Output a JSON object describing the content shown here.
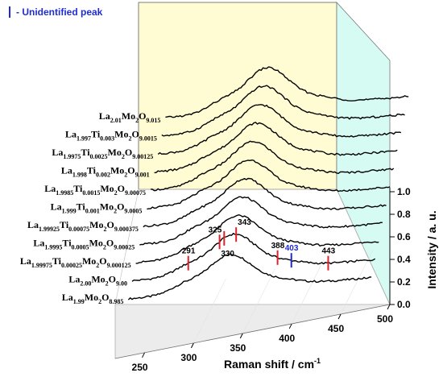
{
  "chart_data": {
    "type": "line",
    "style": "3d-waterfall",
    "xlabel": "Raman shift / cm",
    "xlabel_sup": "-1",
    "ylabel": "Intensity / a. u.",
    "xlim": [
      220,
      500
    ],
    "ylim": [
      0.0,
      1.0
    ],
    "x_ticks": [
      "250",
      "300",
      "350",
      "400",
      "450",
      "500"
    ],
    "y_ticks": [
      "0.0",
      "0.2",
      "0.4",
      "0.6",
      "0.8",
      "1.0"
    ],
    "legend": {
      "text": "- Unidentified peak",
      "color": "#1f2bd6",
      "position": "top-left"
    },
    "peaks": [
      {
        "label": "291",
        "x": 291,
        "color": "#e0202a",
        "unidentified": false
      },
      {
        "label": "325",
        "x": 325,
        "color": "#e0202a",
        "unidentified": false
      },
      {
        "label": "330",
        "x": 330,
        "color": "#e0202a",
        "unidentified": false
      },
      {
        "label": "343",
        "x": 343,
        "color": "#e0202a",
        "unidentified": false
      },
      {
        "label": "388",
        "x": 388,
        "color": "#e0202a",
        "unidentified": false
      },
      {
        "label": "403",
        "x": 403,
        "color": "#1f2bd6",
        "unidentified": true
      },
      {
        "label": "443",
        "x": 443,
        "color": "#e0202a",
        "unidentified": false
      }
    ],
    "series": [
      {
        "parts": [
          "La",
          "1.99",
          "Mo",
          "2",
          "O",
          "8.985"
        ]
      },
      {
        "parts": [
          "La",
          "2.00",
          "Mo",
          "2",
          "O",
          "9.00"
        ]
      },
      {
        "parts": [
          "La",
          "1.99975",
          "Ti",
          "0.00025",
          "Mo",
          "2",
          "O",
          "9.000125"
        ]
      },
      {
        "parts": [
          "La",
          "1.9995",
          "Ti",
          "0.0005",
          "Mo",
          "2",
          "O",
          "9.00025"
        ]
      },
      {
        "parts": [
          "La",
          "1.99925",
          "Ti",
          "0.00075",
          "Mo",
          "2",
          "O",
          "9.000375"
        ]
      },
      {
        "parts": [
          "La",
          "1.999",
          "Ti",
          "0.001",
          "Mo",
          "2",
          "O",
          "9.0005"
        ]
      },
      {
        "parts": [
          "La",
          "1.9985",
          "Ti",
          "0.0015",
          "Mo",
          "2",
          "O",
          "9.00075"
        ]
      },
      {
        "parts": [
          "La",
          "1.998",
          "Ti",
          "0.002",
          "Mo",
          "2",
          "O",
          "9.001"
        ]
      },
      {
        "parts": [
          "La",
          "1.9975",
          "Ti",
          "0.0025",
          "Mo",
          "2",
          "O",
          "9.00125"
        ]
      },
      {
        "parts": [
          "La",
          "1.997",
          "Ti",
          "0.003",
          "Mo",
          "2",
          "O",
          "9.0015"
        ]
      },
      {
        "parts": [
          "La",
          "2.01",
          "Mo",
          "2",
          "O",
          "9.015"
        ]
      }
    ]
  }
}
